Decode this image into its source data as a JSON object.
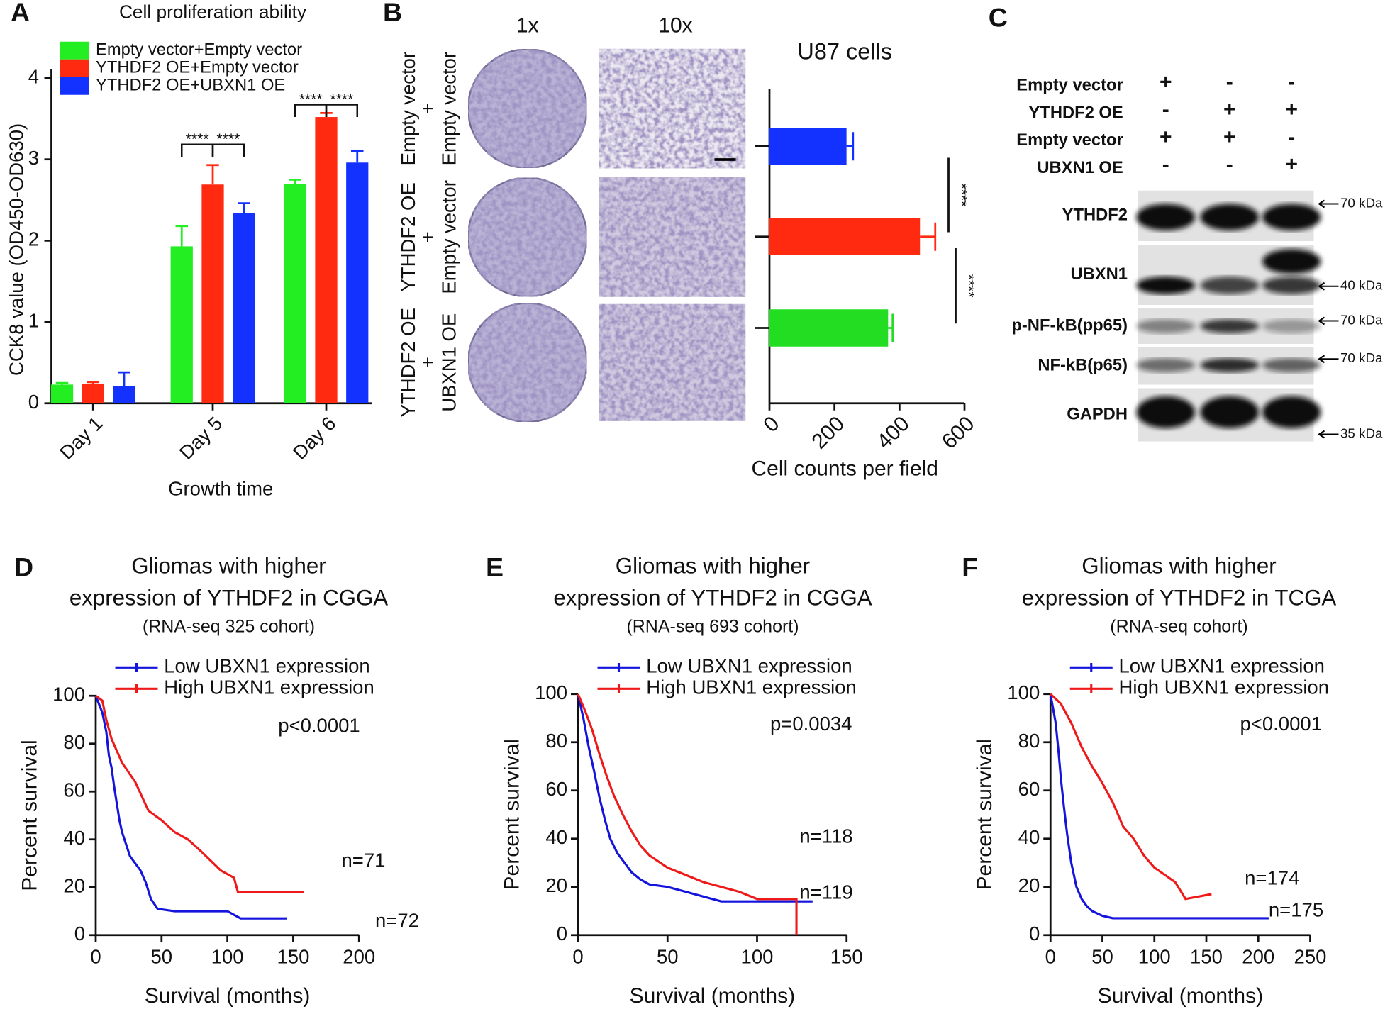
{
  "chart_data": [
    {
      "type": "bar",
      "panel": "A",
      "title": "Cell proliferation ability",
      "xlabel": "Growth time",
      "ylabel": "CCK8 value (OD450-OD630)",
      "categories": [
        "Day 1",
        "Day 5",
        "Day 6"
      ],
      "series": [
        {
          "name": "Empty vector+Empty vector",
          "color": "#22ee22",
          "values": [
            0.23,
            1.93,
            2.7
          ],
          "errors": [
            0.02,
            0.25,
            0.05
          ]
        },
        {
          "name": "YTHDF2 OE+Empty vector",
          "color": "#ff2a10",
          "values": [
            0.24,
            2.69,
            3.52
          ],
          "errors": [
            0.02,
            0.24,
            0.05
          ]
        },
        {
          "name": "YTHDF2 OE+UBXN1 OE",
          "color": "#1432ff",
          "values": [
            0.21,
            2.34,
            2.96
          ],
          "errors": [
            0.17,
            0.12,
            0.14
          ]
        }
      ],
      "ylim": [
        0,
        4
      ],
      "yticks": [
        0,
        1,
        2,
        3,
        4
      ],
      "annotations": [
        "****",
        "****",
        "****",
        "****"
      ]
    },
    {
      "type": "hbar",
      "panel": "B",
      "title": "U87 cells",
      "xlabel": "Cell counts per field",
      "categories": [
        null,
        null,
        null
      ],
      "values": [
        237,
        463,
        365
      ],
      "errors": [
        20,
        47,
        14
      ],
      "colors": [
        "#1432ff",
        "#ff2a10",
        "#22dd22"
      ],
      "xlim": [
        0,
        600
      ],
      "xticks": [
        0,
        200,
        400,
        600
      ],
      "annotations": [
        "****",
        "****"
      ]
    },
    {
      "type": "survival",
      "panel": "D",
      "title": [
        "Gliomas with higher",
        "expression of YTHDF2 in CGGA"
      ],
      "subtitle": "(RNA-seq 325 cohort)",
      "xlabel": "Survival (months)",
      "ylabel": "Percent survival",
      "xlim": [
        0,
        200
      ],
      "xticks": [
        0,
        50,
        100,
        150,
        200
      ],
      "ylim": [
        0,
        100
      ],
      "yticks": [
        0,
        20,
        40,
        60,
        80,
        100
      ],
      "series": [
        {
          "name": "Low UBXN1 expression",
          "color": "#1414dd",
          "x": [
            0,
            5,
            8,
            10,
            12,
            14,
            16,
            18,
            20,
            23,
            26,
            30,
            34,
            38,
            42,
            47,
            60,
            100,
            110,
            145
          ],
          "values": [
            100,
            93,
            85,
            75,
            70,
            62,
            55,
            48,
            43,
            38,
            33,
            30,
            27,
            22,
            15,
            11,
            10,
            10,
            7,
            7
          ]
        },
        {
          "name": "High UBXN1 expression",
          "color": "#ee1a1a",
          "x": [
            0,
            5,
            8,
            12,
            16,
            20,
            25,
            30,
            35,
            40,
            50,
            60,
            70,
            80,
            95,
            105,
            108,
            158
          ],
          "values": [
            100,
            98,
            90,
            82,
            77,
            72,
            68,
            64,
            58,
            52,
            48,
            43,
            40,
            35,
            27,
            24,
            18,
            18
          ]
        }
      ],
      "annotations": [
        "p<0.0001",
        "n=71",
        "n=72"
      ]
    },
    {
      "type": "survival",
      "panel": "E",
      "title": [
        "Gliomas with higher",
        "expression of YTHDF2 in CGGA"
      ],
      "subtitle": "(RNA-seq 693 cohort)",
      "xlabel": "Survival (months)",
      "ylabel": "Percent survival",
      "xlim": [
        0,
        150
      ],
      "xticks": [
        0,
        50,
        100,
        150
      ],
      "ylim": [
        0,
        100
      ],
      "yticks": [
        0,
        20,
        40,
        60,
        80,
        100
      ],
      "series": [
        {
          "name": "Low UBXN1 expression",
          "color": "#1414dd",
          "x": [
            0,
            3,
            6,
            9,
            12,
            15,
            18,
            22,
            26,
            30,
            35,
            40,
            50,
            60,
            70,
            80,
            131
          ],
          "values": [
            100,
            90,
            78,
            68,
            57,
            48,
            40,
            34,
            30,
            26,
            23,
            21,
            20,
            18,
            16,
            14,
            14
          ]
        },
        {
          "name": "High UBXN1 expression",
          "color": "#ee1a1a",
          "x": [
            0,
            4,
            8,
            12,
            16,
            20,
            25,
            30,
            35,
            40,
            50,
            60,
            70,
            90,
            100,
            122,
            122
          ],
          "values": [
            100,
            93,
            85,
            75,
            66,
            58,
            50,
            43,
            37,
            33,
            28,
            25,
            22,
            18,
            15,
            15,
            0
          ]
        }
      ],
      "annotations": [
        "p=0.0034",
        "n=118",
        "n=119"
      ]
    },
    {
      "type": "survival",
      "panel": "F",
      "title": [
        "Gliomas with higher",
        "expression of YTHDF2 in TCGA"
      ],
      "subtitle": "(RNA-seq cohort)",
      "xlabel": "Survival (months)",
      "ylabel": "Percent survival",
      "xlim": [
        0,
        250
      ],
      "xticks": [
        0,
        50,
        100,
        150,
        200,
        250
      ],
      "ylim": [
        0,
        100
      ],
      "yticks": [
        0,
        20,
        40,
        60,
        80,
        100
      ],
      "series": [
        {
          "name": "Low UBXN1 expression",
          "color": "#1414dd",
          "x": [
            0,
            5,
            8,
            10,
            13,
            16,
            20,
            25,
            30,
            35,
            40,
            50,
            60,
            210
          ],
          "values": [
            100,
            88,
            75,
            65,
            53,
            42,
            30,
            20,
            15,
            12,
            10,
            8,
            7,
            7
          ]
        },
        {
          "name": "High UBXN1 expression",
          "color": "#ee1a1a",
          "x": [
            0,
            10,
            20,
            30,
            40,
            50,
            60,
            70,
            80,
            90,
            100,
            110,
            120,
            130,
            155
          ],
          "values": [
            100,
            96,
            88,
            78,
            70,
            63,
            55,
            45,
            40,
            33,
            28,
            25,
            22,
            15,
            17
          ]
        }
      ],
      "annotations": [
        "p<0.0001",
        "n=174",
        "n=175"
      ]
    }
  ],
  "images": {
    "columns": [
      "1x",
      "10x"
    ],
    "rows": [
      [
        "Empty vector",
        "+",
        "Empty vector"
      ],
      [
        "YTHDF2 OE",
        "+",
        "Empty vector"
      ],
      [
        "YTHDF2 OE",
        "+",
        "UBXN1 OE"
      ]
    ]
  },
  "blot": {
    "panel": "C",
    "conditions": [
      {
        "label": "Empty vector",
        "signs": [
          "+",
          "-",
          "-"
        ]
      },
      {
        "label": "YTHDF2 OE",
        "signs": [
          "-",
          "+",
          "+"
        ]
      },
      {
        "label": "Empty vector",
        "signs": [
          "+",
          "+",
          "-"
        ]
      },
      {
        "label": "UBXN1 OE",
        "signs": [
          "-",
          "-",
          "+"
        ]
      }
    ],
    "bands": [
      {
        "label": "YTHDF2",
        "marker": "70 kDa"
      },
      {
        "label": "UBXN1",
        "marker": "40 kDa"
      },
      {
        "label": "p-NF-kB(pp65)",
        "marker": "70 kDa"
      },
      {
        "label": "NF-kB(p65)",
        "marker": "70 kDa"
      },
      {
        "label": "GAPDH",
        "marker": "35 kDa"
      }
    ]
  }
}
